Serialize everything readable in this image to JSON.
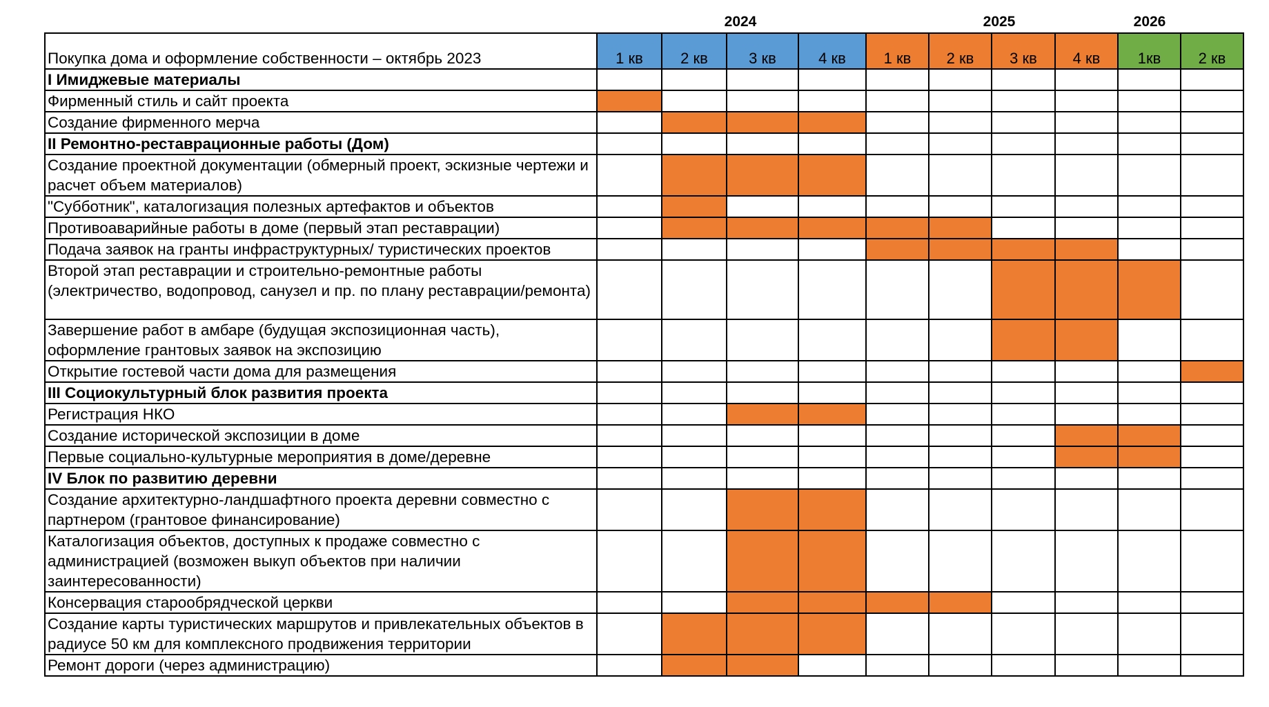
{
  "colors": {
    "bar": "#ED7D31",
    "q2024": "#5B9BD5",
    "q2025": "#ED7D31",
    "q2026": "#70AD47"
  },
  "years": [
    "2024",
    "2025",
    "2026"
  ],
  "header_title": "Покупка дома и оформление собственности – октябрь 2023",
  "quarters": [
    {
      "label": "1 кв",
      "year": "2024"
    },
    {
      "label": "2 кв",
      "year": "2024"
    },
    {
      "label": "3 кв",
      "year": "2024"
    },
    {
      "label": "4 кв",
      "year": "2024"
    },
    {
      "label": "1 кв",
      "year": "2025"
    },
    {
      "label": "2 кв",
      "year": "2025"
    },
    {
      "label": "3 кв",
      "year": "2025"
    },
    {
      "label": "4 кв",
      "year": "2025"
    },
    {
      "label": "1кв",
      "year": "2026"
    },
    {
      "label": "2 кв",
      "year": "2026"
    }
  ],
  "rows": [
    {
      "label": "I Имиджевые материалы",
      "section": true,
      "active": []
    },
    {
      "label": "Фирменный стиль и сайт проекта",
      "active": [
        0
      ]
    },
    {
      "label": "Создание фирменного мерча",
      "active": [
        1,
        2,
        3
      ]
    },
    {
      "label": "II Ремонтно-реставрационные работы (Дом)",
      "section": true,
      "active": []
    },
    {
      "label": "Создание проектной документации (обмерный проект, эскизные чертежи и расчет объем материалов)",
      "active": [
        1,
        2,
        3
      ]
    },
    {
      "label": "\"Субботник\", каталогизация полезных артефактов и объектов",
      "active": [
        1
      ]
    },
    {
      "label": "Противоаварийные работы в доме (первый этап реставрации)",
      "active": [
        1,
        2,
        3,
        4,
        5
      ]
    },
    {
      "label": "Подача заявок на гранты инфраструктурных/ туристических проектов",
      "active": [
        4,
        5,
        6,
        7
      ]
    },
    {
      "label": "Второй этап реставрации и строительно-ремонтные работы (электричество, водопровод, санузел и пр. по плану реставрации/ремонта)",
      "active": [
        6,
        7,
        8
      ]
    },
    {
      "label": "Завершение работ в амбаре (будущая экспозиционная часть), оформление грантовых заявок на экспозицию",
      "active": [
        6,
        7
      ]
    },
    {
      "label": "Открытие гостевой части дома для размещения",
      "active": [
        9
      ]
    },
    {
      "label": "III Социокультурный блок развития проекта",
      "section": true,
      "active": []
    },
    {
      "label": "Регистрация НКО",
      "active": [
        2,
        3
      ]
    },
    {
      "label": "Создание исторической экспозиции в доме",
      "active": [
        7,
        8
      ]
    },
    {
      "label": "Первые социально-культурные мероприятия в доме/деревне",
      "active": [
        7,
        8
      ]
    },
    {
      "label": "IV Блок по развитию деревни",
      "section": true,
      "active": []
    },
    {
      "label": "Создание архитектурно-ландшафтного проекта деревни  совместно с партнером (грантовое финансирование)",
      "active": [
        2,
        3
      ]
    },
    {
      "label": "Каталогизация объектов, доступных к продаже совместно с администрацией (возможен выкуп объектов при наличии заинтересованности)",
      "active": [
        2,
        3
      ]
    },
    {
      "label": "Консервация старообрядческой церкви",
      "active": [
        2,
        3,
        4,
        5
      ]
    },
    {
      "label": "Создание карты туристических маршрутов и привлекательных объектов в радиусе 50 км для комплексного продвижения территории",
      "active": [
        1,
        2,
        3
      ]
    },
    {
      "label": "Ремонт дороги (через администрацию)",
      "active": [
        1,
        2
      ]
    }
  ]
}
